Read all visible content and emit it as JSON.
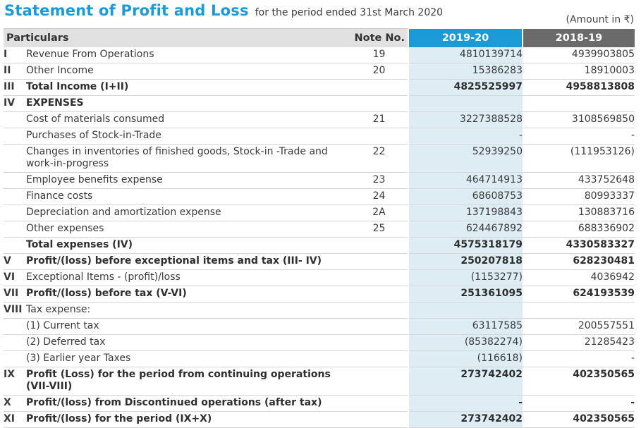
{
  "title": {
    "main": "Statement of Profit and Loss",
    "sub": "for the period ended 31st March 2020"
  },
  "amount_note": "(Amount in ₹)",
  "header": {
    "particulars": "Particulars",
    "note": "Note No.",
    "current_year": "2019-20",
    "previous_year": "2018-19"
  },
  "colors": {
    "accent": "#1a9ad6",
    "prev_header": "#6b6b6b",
    "current_col_fill": "#deedf4"
  },
  "rows": [
    {
      "rn": "I",
      "label": "Revenue From Operations",
      "note": "19",
      "cy": "4810139714",
      "py": "4939903805",
      "bold": false
    },
    {
      "rn": "II",
      "label": "Other Income",
      "note": "20",
      "cy": "15386283",
      "py": "18910003",
      "bold": false
    },
    {
      "rn": "III",
      "label": "Total Income (I+II)",
      "note": "",
      "cy": "4825525997",
      "py": "4958813808",
      "bold": true
    },
    {
      "rn": "IV",
      "label": "EXPENSES",
      "note": "",
      "cy": "",
      "py": "",
      "bold": true
    },
    {
      "rn": "",
      "label": "Cost of materials consumed",
      "note": "21",
      "cy": "3227388528",
      "py": "3108569850",
      "bold": false
    },
    {
      "rn": "",
      "label": "Purchases of Stock-in-Trade",
      "note": "",
      "cy": "-",
      "py": "-",
      "bold": false
    },
    {
      "rn": "",
      "label": "Changes in inventories of finished goods, Stock-in -Trade and work-in-progress",
      "note": "22",
      "cy": "52939250",
      "py": "(111953126)",
      "bold": false
    },
    {
      "rn": "",
      "label": "Employee benefits expense",
      "note": "23",
      "cy": "464714913",
      "py": "433752648",
      "bold": false
    },
    {
      "rn": "",
      "label": "Finance costs",
      "note": "24",
      "cy": "68608753",
      "py": "80993337",
      "bold": false
    },
    {
      "rn": "",
      "label": "Depreciation and amortization expense",
      "note": "2A",
      "cy": "137198843",
      "py": "130883716",
      "bold": false
    },
    {
      "rn": "",
      "label": "Other expenses",
      "note": "25",
      "cy": "624467892",
      "py": "688336902",
      "bold": false
    },
    {
      "rn": "",
      "label": "Total expenses (IV)",
      "note": "",
      "cy": "4575318179",
      "py": "4330583327",
      "bold": true
    },
    {
      "rn": "V",
      "label": "Profit/(loss) before exceptional items and tax (III- IV)",
      "note": "",
      "cy": "250207818",
      "py": "628230481",
      "bold": true
    },
    {
      "rn": "VI",
      "label": "Exceptional Items - (profit)/loss",
      "note": "",
      "cy": "(1153277)",
      "py": "4036942",
      "bold": false
    },
    {
      "rn": "VII",
      "label": "Profit/(loss) before tax (V-VI)",
      "note": "",
      "cy": "251361095",
      "py": "624193539",
      "bold": true
    },
    {
      "rn": "VIII",
      "label": "Tax expense:",
      "note": "",
      "cy": "",
      "py": "",
      "bold": false
    },
    {
      "rn": "",
      "label": "(1)   Current tax",
      "note": "",
      "cy": "63117585",
      "py": "200557551",
      "bold": false
    },
    {
      "rn": "",
      "label": "(2)   Deferred tax",
      "note": "",
      "cy": "(85382274)",
      "py": "21285423",
      "bold": false
    },
    {
      "rn": "",
      "label": "(3)   Earlier year Taxes",
      "note": "",
      "cy": "(116618)",
      "py": "-",
      "bold": false
    },
    {
      "rn": "IX",
      "label": "Profit (Loss) for the period from continuing operations (VII-VIII)",
      "note": "",
      "cy": "273742402",
      "py": "402350565",
      "bold": true
    },
    {
      "rn": "X",
      "label": "Profit/(loss) from Discontinued operations (after tax)",
      "note": "",
      "cy": "-",
      "py": "-",
      "bold": true
    },
    {
      "rn": "XI",
      "label": "Profit/(loss) for the period (IX+X)",
      "note": "",
      "cy": "273742402",
      "py": "402350565",
      "bold": true
    }
  ]
}
